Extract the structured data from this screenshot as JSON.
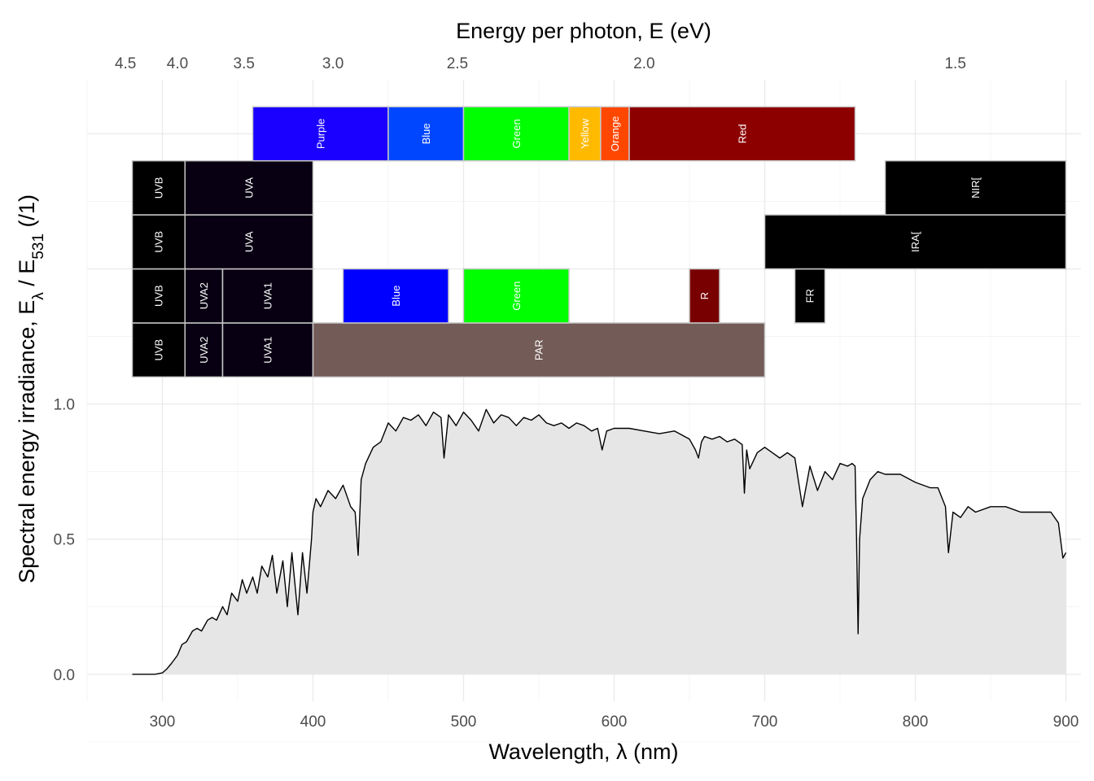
{
  "chart_data": {
    "type": "area",
    "xlabel": "Wavelength, λ (nm)",
    "ylabel": "Spectral energy irradiance, E",
    "ylabel_sub": "λ",
    "ylabel_sep": " / E",
    "ylabel_sub2": "531",
    "ylabel_tail": " (/1)",
    "x2label": "Energy per photon, E (eV)",
    "xlim": [
      250,
      910
    ],
    "ylim": [
      -0.1,
      2.2
    ],
    "x_ticks": [
      300,
      400,
      500,
      600,
      700,
      800,
      900
    ],
    "y_ticks": [
      0.0,
      0.5,
      1.0
    ],
    "x2_ticks": [
      {
        "label": "4.5",
        "wl": 275.5
      },
      {
        "label": "4.0",
        "wl": 310.0
      },
      {
        "label": "3.5",
        "wl": 354.2
      },
      {
        "label": "3.0",
        "wl": 413.3
      },
      {
        "label": "2.5",
        "wl": 495.9
      },
      {
        "label": "2.0",
        "wl": 619.9
      },
      {
        "label": "1.5",
        "wl": 826.6
      }
    ],
    "grid": true,
    "fill_color": "#e6e6e6",
    "line_color": "#000000",
    "spectrum": {
      "x": [
        280,
        290,
        295,
        300,
        303,
        306,
        310,
        313,
        316,
        320,
        323,
        326,
        330,
        333,
        336,
        340,
        343,
        346,
        350,
        353,
        356,
        360,
        363,
        366,
        370,
        373,
        376,
        380,
        383,
        386,
        390,
        393,
        396,
        399,
        400,
        402,
        405,
        410,
        415,
        420,
        425,
        428,
        430,
        432,
        435,
        440,
        445,
        450,
        455,
        460,
        465,
        470,
        475,
        480,
        485,
        487,
        490,
        495,
        500,
        505,
        510,
        515,
        520,
        525,
        530,
        535,
        540,
        545,
        550,
        555,
        560,
        565,
        570,
        575,
        580,
        585,
        589,
        592,
        595,
        600,
        610,
        620,
        630,
        640,
        650,
        654,
        656,
        658,
        660,
        665,
        670,
        675,
        680,
        685,
        686.5,
        688,
        690,
        695,
        700,
        705,
        710,
        715,
        720,
        725,
        730,
        735,
        740,
        745,
        750,
        755,
        758,
        760,
        761,
        762,
        763,
        765,
        770,
        775,
        780,
        790,
        800,
        810,
        815,
        820,
        822,
        825,
        830,
        835,
        840,
        850,
        860,
        870,
        880,
        890,
        895,
        898,
        900
      ],
      "y": [
        0.0,
        0.0,
        0.0,
        0.005,
        0.02,
        0.04,
        0.07,
        0.11,
        0.12,
        0.16,
        0.17,
        0.16,
        0.2,
        0.21,
        0.2,
        0.25,
        0.22,
        0.3,
        0.27,
        0.35,
        0.3,
        0.36,
        0.3,
        0.4,
        0.36,
        0.44,
        0.3,
        0.42,
        0.25,
        0.45,
        0.22,
        0.45,
        0.3,
        0.5,
        0.6,
        0.65,
        0.62,
        0.68,
        0.65,
        0.7,
        0.62,
        0.6,
        0.44,
        0.72,
        0.78,
        0.84,
        0.86,
        0.93,
        0.9,
        0.95,
        0.94,
        0.96,
        0.92,
        0.97,
        0.95,
        0.8,
        0.96,
        0.92,
        0.97,
        0.94,
        0.9,
        0.98,
        0.93,
        0.96,
        0.95,
        0.92,
        0.95,
        0.94,
        0.96,
        0.93,
        0.92,
        0.93,
        0.91,
        0.93,
        0.92,
        0.9,
        0.91,
        0.83,
        0.9,
        0.91,
        0.91,
        0.9,
        0.89,
        0.9,
        0.87,
        0.83,
        0.8,
        0.86,
        0.88,
        0.87,
        0.88,
        0.86,
        0.87,
        0.85,
        0.67,
        0.83,
        0.76,
        0.82,
        0.84,
        0.82,
        0.8,
        0.82,
        0.8,
        0.62,
        0.77,
        0.68,
        0.75,
        0.72,
        0.78,
        0.77,
        0.78,
        0.77,
        0.5,
        0.15,
        0.5,
        0.65,
        0.72,
        0.75,
        0.74,
        0.74,
        0.71,
        0.69,
        0.69,
        0.62,
        0.45,
        0.6,
        0.58,
        0.62,
        0.6,
        0.62,
        0.62,
        0.6,
        0.6,
        0.6,
        0.56,
        0.43,
        0.45
      ]
    },
    "bands": [
      {
        "row": 1,
        "label": "UVB",
        "from": 280,
        "to": 315,
        "color": "#000000"
      },
      {
        "row": 1,
        "label": "UVA2",
        "from": 315,
        "to": 340,
        "color": "#080012"
      },
      {
        "row": 1,
        "label": "UVA1",
        "from": 340,
        "to": 400,
        "color": "#080012"
      },
      {
        "row": 1,
        "label": "PAR",
        "from": 400,
        "to": 700,
        "color": "#735B57"
      },
      {
        "row": 2,
        "label": "UVB",
        "from": 280,
        "to": 315,
        "color": "#000000"
      },
      {
        "row": 2,
        "label": "UVA2",
        "from": 315,
        "to": 340,
        "color": "#080012"
      },
      {
        "row": 2,
        "label": "UVA1",
        "from": 340,
        "to": 400,
        "color": "#080012"
      },
      {
        "row": 2,
        "label": "Blue",
        "from": 420,
        "to": 490,
        "color": "#0000FF"
      },
      {
        "row": 2,
        "label": "Green",
        "from": 500,
        "to": 570,
        "color": "#00FF00"
      },
      {
        "row": 2,
        "label": "R",
        "from": 650,
        "to": 670,
        "color": "#780000"
      },
      {
        "row": 2,
        "label": "FR",
        "from": 720,
        "to": 740,
        "color": "#000000"
      },
      {
        "row": 3,
        "label": "UVB",
        "from": 280,
        "to": 315,
        "color": "#000000"
      },
      {
        "row": 3,
        "label": "UVA",
        "from": 315,
        "to": 400,
        "color": "#080012"
      },
      {
        "row": 3,
        "label": "IRA[",
        "from": 700,
        "to": 900,
        "color": "#000000"
      },
      {
        "row": 4,
        "label": "UVB",
        "from": 280,
        "to": 315,
        "color": "#000000"
      },
      {
        "row": 4,
        "label": "UVA",
        "from": 315,
        "to": 400,
        "color": "#080012"
      },
      {
        "row": 4,
        "label": "NIR[",
        "from": 780,
        "to": 900,
        "color": "#000000"
      },
      {
        "row": 5,
        "label": "Purple",
        "from": 360,
        "to": 450,
        "color": "#1A00FF"
      },
      {
        "row": 5,
        "label": "Blue",
        "from": 450,
        "to": 500,
        "color": "#0046FF"
      },
      {
        "row": 5,
        "label": "Green",
        "from": 500,
        "to": 570,
        "color": "#00FF00"
      },
      {
        "row": 5,
        "label": "Yellow",
        "from": 570,
        "to": 591,
        "color": "#FFBA00"
      },
      {
        "row": 5,
        "label": "Orange",
        "from": 591,
        "to": 610,
        "color": "#FF4700"
      },
      {
        "row": 5,
        "label": "Red",
        "from": 610,
        "to": 760,
        "color": "#8D0000"
      }
    ]
  }
}
